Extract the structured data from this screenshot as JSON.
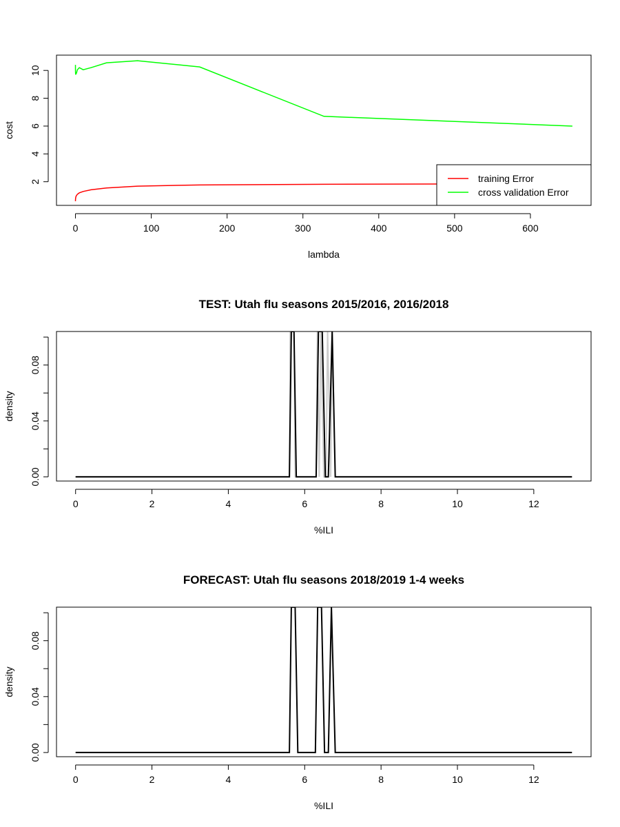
{
  "chart_data": [
    {
      "type": "line",
      "title": "",
      "xlabel": "lambda",
      "ylabel": "cost",
      "xlim": [
        -25,
        680
      ],
      "ylim": [
        0.3,
        11.1
      ],
      "xticks": [
        0,
        100,
        200,
        300,
        400,
        500,
        600
      ],
      "yticks": [
        2,
        4,
        6,
        8,
        10
      ],
      "grid": false,
      "legend_position": "bottom-right",
      "series": [
        {
          "name": "training Error",
          "color": "#ff0000",
          "x": [
            0,
            0.01,
            0.02,
            0.04,
            0.08,
            0.16,
            0.32,
            0.64,
            1.28,
            2.56,
            5.12,
            10.24,
            20.48,
            40.96,
            81.92,
            163.84,
            327.68,
            655.36
          ],
          "y": [
            0.6,
            0.62,
            0.65,
            0.68,
            0.72,
            0.78,
            0.85,
            0.93,
            1.0,
            1.1,
            1.2,
            1.3,
            1.42,
            1.55,
            1.68,
            1.77,
            1.82,
            1.85
          ]
        },
        {
          "name": "cross validation Error",
          "color": "#00ff00",
          "x": [
            0,
            0.01,
            0.02,
            0.04,
            0.08,
            0.16,
            0.32,
            0.64,
            1.28,
            2.56,
            5.12,
            10.24,
            20.48,
            40.96,
            81.92,
            163.84,
            327.68,
            655.36
          ],
          "y": [
            10.4,
            10.3,
            10.1,
            10.0,
            9.9,
            9.8,
            9.7,
            9.75,
            9.8,
            10.05,
            10.2,
            10.05,
            10.2,
            10.55,
            10.7,
            10.25,
            6.7,
            6.0
          ]
        }
      ]
    },
    {
      "type": "line",
      "title": "TEST: Utah  flu seasons 2015/2016, 2016/2018",
      "xlabel": "%ILI",
      "ylabel": "density",
      "xlim": [
        -0.5,
        13.5
      ],
      "ylim": [
        -0.003,
        0.104
      ],
      "xticks": [
        0,
        2,
        4,
        6,
        8,
        10,
        12
      ],
      "yticks": [
        0.0,
        0.02,
        0.04,
        0.06,
        0.08,
        0.1
      ],
      "ytick_labels": [
        "0.00",
        "",
        "0.04",
        "",
        "0.08",
        ""
      ],
      "grid": false,
      "series": [
        {
          "name": "",
          "color": "#cccccc",
          "x": [
            0,
            5.6,
            5.62,
            5.65,
            5.72,
            5.75,
            5.8,
            6.3,
            6.33,
            6.38,
            6.42,
            6.5,
            6.56,
            6.6,
            6.68,
            6.72,
            6.8,
            13
          ],
          "y": [
            0,
            0,
            0.104,
            0.104,
            0.104,
            0,
            0,
            0,
            0.104,
            0,
            0.104,
            0,
            0,
            0.104,
            0,
            0.104,
            0,
            0
          ]
        },
        {
          "name": "",
          "color": "#000000",
          "x": [
            0,
            5.6,
            5.65,
            5.72,
            5.78,
            6.3,
            6.36,
            6.46,
            6.54,
            6.62,
            6.72,
            6.8,
            13
          ],
          "y": [
            0,
            0,
            0.104,
            0.104,
            0,
            0,
            0.104,
            0.104,
            0,
            0,
            0.104,
            0,
            0
          ]
        }
      ]
    },
    {
      "type": "line",
      "title": "FORECAST: Utah flu seasons 2018/2019 1-4 weeks",
      "xlabel": "%ILI",
      "ylabel": "density",
      "xlim": [
        -0.5,
        13.5
      ],
      "ylim": [
        -0.003,
        0.104
      ],
      "xticks": [
        0,
        2,
        4,
        6,
        8,
        10,
        12
      ],
      "yticks": [
        0.0,
        0.02,
        0.04,
        0.06,
        0.08,
        0.1
      ],
      "ytick_labels": [
        "0.00",
        "",
        "0.04",
        "",
        "0.08",
        ""
      ],
      "grid": false,
      "series": [
        {
          "name": "",
          "color": "#000000",
          "x": [
            0,
            5.6,
            5.65,
            5.75,
            5.82,
            6.28,
            6.34,
            6.44,
            6.52,
            6.62,
            6.7,
            6.8,
            13
          ],
          "y": [
            0,
            0,
            0.104,
            0.104,
            0,
            0,
            0.104,
            0.104,
            0,
            0,
            0.104,
            0,
            0
          ]
        }
      ]
    }
  ]
}
